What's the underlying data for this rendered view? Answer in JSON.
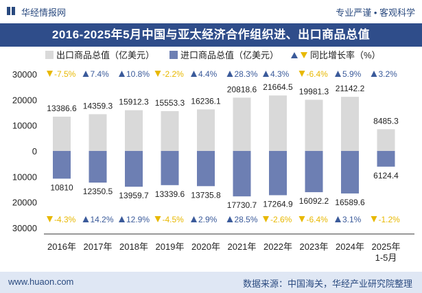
{
  "header": {
    "logo_text": "华经情报网",
    "right_text": "专业严谨 • 客观科学"
  },
  "title": "2016-2025年5月中国与亚太经济合作组织进、出口商品总值",
  "footer": {
    "website": "www.huaon.com",
    "source": "数据来源：中国海关，华经产业研究院整理"
  },
  "colors": {
    "export_bar": "#d9d9d9",
    "import_bar": "#6d7fb3",
    "increase": "#3a5a9a",
    "decrease": "#e8b800",
    "title_bg": "#2f4d8a",
    "footer_bg": "#dfe7f4"
  },
  "chart_data": {
    "type": "bar",
    "title": "2016-2025年5月中国与亚太经济合作组织进、出口商品总值",
    "categories": [
      "2016年",
      "2017年",
      "2018年",
      "2019年",
      "2020年",
      "2021年",
      "2022年",
      "2023年",
      "2024年",
      "2025年 1-5月"
    ],
    "series": [
      {
        "name": "出口商品总值（亿美元）",
        "values": [
          13386.6,
          14359.3,
          15912.3,
          15553.3,
          16236.1,
          20818.6,
          21664.5,
          19981.3,
          21142.2,
          8485.3
        ],
        "labels": [
          "13386.6",
          "14359.3",
          "15912.3",
          "15553.3",
          "16236.1",
          "20818.6",
          "21664.5",
          "19981.3",
          "21142.2",
          "8485.3"
        ],
        "yoy_growth_pct": [
          -7.5,
          7.4,
          10.8,
          -2.2,
          4.4,
          28.3,
          4.3,
          -6.4,
          5.9,
          3.2
        ],
        "yoy_labels": [
          "-7.5%",
          "7.4%",
          "10.8%",
          "-2.2%",
          "4.4%",
          "28.3%",
          "4.3%",
          "-6.4%",
          "5.9%",
          "3.2%"
        ]
      },
      {
        "name": "进口商品总值（亿美元）",
        "values": [
          10810,
          12350.5,
          13959.7,
          13339.6,
          13735.8,
          17730.7,
          17264.9,
          16092.2,
          16589.6,
          6124.4
        ],
        "labels": [
          "10810",
          "12350.5",
          "13959.7",
          "13339.6",
          "13735.8",
          "17730.7",
          "17264.9",
          "16092.2",
          "16589.6",
          "6124.4"
        ],
        "yoy_growth_pct": [
          -4.3,
          14.2,
          12.9,
          -4.5,
          2.9,
          28.5,
          -2.6,
          -6.4,
          3.1,
          -1.2
        ],
        "yoy_labels": [
          "-4.3%",
          "14.2%",
          "12.9%",
          "-4.5%",
          "2.9%",
          "28.5%",
          "-2.6%",
          "-6.4%",
          "3.1%",
          "-1.2%"
        ]
      }
    ],
    "legend": [
      "出口商品总值（亿美元）",
      "进口商品总值（亿美元）",
      "同比增长率（%）"
    ],
    "y_ticks": [
      "30000",
      "20000",
      "10000",
      "0",
      "10000",
      "20000",
      "30000"
    ],
    "ylim": [
      -30000,
      30000
    ],
    "grid": false,
    "legend_position": "top"
  }
}
